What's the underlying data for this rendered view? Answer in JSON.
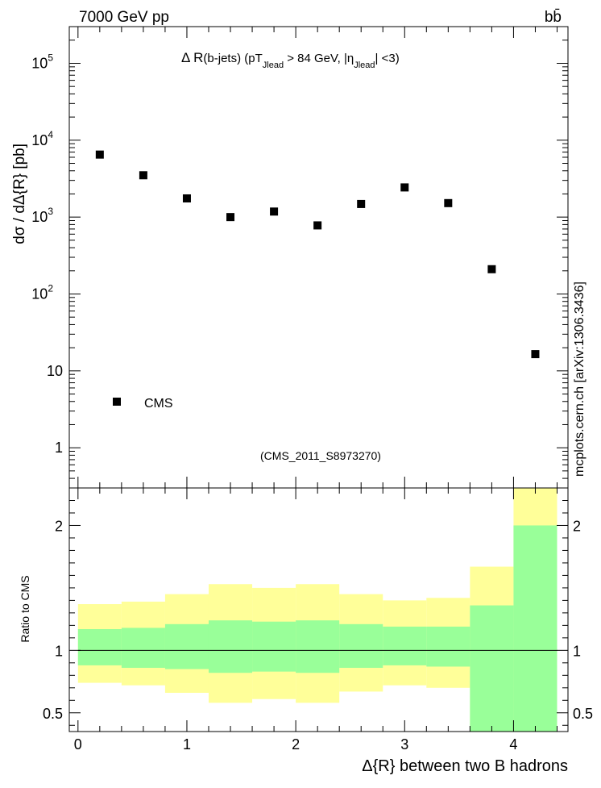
{
  "header": {
    "left_label": "7000 GeV pp",
    "right_label": "bb̄"
  },
  "side_label": "mcplots.cern.ch [arXiv:1306.3436]",
  "chart_data": {
    "type": "scatter",
    "main": {
      "title_parts": {
        "delta_r": "Δ R",
        "bjets": "(b-jets) (pT",
        "jlead1": "Jlead",
        "cut": " >  84 GeV, |η",
        "jlead2": "Jlead",
        "end": "| <3)"
      },
      "ylabel": "dσ / dΔ{R} [pb]",
      "yscale": "log",
      "ylim": [
        0.3,
        300000
      ],
      "y_tick_labels": [
        {
          "value": 100000,
          "base": "10",
          "exp": "5"
        },
        {
          "value": 10000,
          "base": "10",
          "exp": "4"
        },
        {
          "value": 1000,
          "base": "10",
          "exp": "3"
        },
        {
          "value": 100,
          "base": "10",
          "exp": "2"
        },
        {
          "value": 10,
          "base": "10",
          "exp": ""
        },
        {
          "value": 1,
          "base": "1",
          "exp": ""
        }
      ],
      "series": [
        {
          "name": "CMS",
          "marker": "square",
          "color": "#000000",
          "x": [
            0.2,
            0.6,
            1.0,
            1.4,
            1.8,
            2.2,
            2.6,
            3.0,
            3.4,
            3.8,
            4.2
          ],
          "y": [
            6500,
            3500,
            1750,
            1000,
            1180,
            780,
            1480,
            2430,
            1520,
            210,
            16.5
          ]
        }
      ],
      "legend_placement": "bottom-left",
      "watermark": "(CMS_2011_S8973270)"
    },
    "ratio": {
      "ylabel": "Ratio to CMS",
      "ylim": [
        0.35,
        2.3
      ],
      "y_ticks": [
        0.5,
        1,
        2
      ],
      "y_tick_labels": [
        "0.5",
        "1",
        "2"
      ],
      "reference_line": 1,
      "bin_edges": [
        0,
        0.4,
        0.8,
        1.2,
        1.6,
        2.0,
        2.4,
        2.8,
        3.2,
        3.6,
        4.0,
        4.4
      ],
      "band_inner": {
        "color": "#99ff99",
        "low": [
          0.88,
          0.86,
          0.85,
          0.82,
          0.83,
          0.82,
          0.86,
          0.88,
          0.87,
          0.35,
          0.35
        ],
        "high": [
          1.17,
          1.18,
          1.21,
          1.24,
          1.23,
          1.24,
          1.21,
          1.19,
          1.19,
          1.36,
          2.0
        ]
      },
      "band_outer": {
        "color": "#ffff99",
        "low": [
          0.74,
          0.72,
          0.66,
          0.58,
          0.61,
          0.58,
          0.67,
          0.72,
          0.7,
          0.35,
          0.35
        ],
        "high": [
          1.37,
          1.39,
          1.45,
          1.53,
          1.5,
          1.53,
          1.45,
          1.4,
          1.42,
          1.67,
          2.3
        ]
      }
    },
    "x_axis": {
      "xlabel": "Δ{R} between two B hadrons",
      "xlim": [
        -0.08,
        4.5
      ],
      "ticks": [
        0,
        1,
        2,
        3,
        4
      ],
      "tick_labels": [
        "0",
        "1",
        "2",
        "3",
        "4"
      ]
    }
  }
}
